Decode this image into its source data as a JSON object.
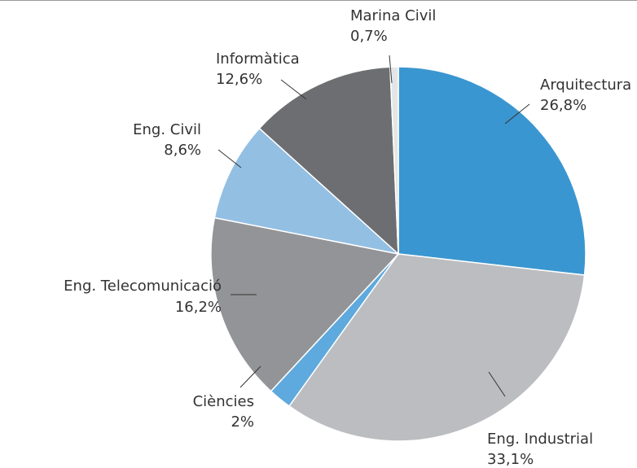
{
  "chart_data": {
    "type": "pie",
    "categories": [
      "Arquitectura",
      "Eng. Industrial",
      "Ciències",
      "Eng. Telecomunicació",
      "Eng. Civil",
      "Informàtica",
      "Marina Civil"
    ],
    "values": [
      26.8,
      33.1,
      2,
      16.2,
      8.6,
      12.6,
      0.7
    ],
    "value_labels": [
      "26,8%",
      "33,1%",
      "2%",
      "16,2%",
      "8,6%",
      "12,6%",
      "0,7%"
    ],
    "colors": [
      "#3a96d0",
      "#bcbdc0",
      "#5ea9dd",
      "#929497",
      "#93bfe3",
      "#6d6e71",
      "#e4e5e6"
    ]
  }
}
